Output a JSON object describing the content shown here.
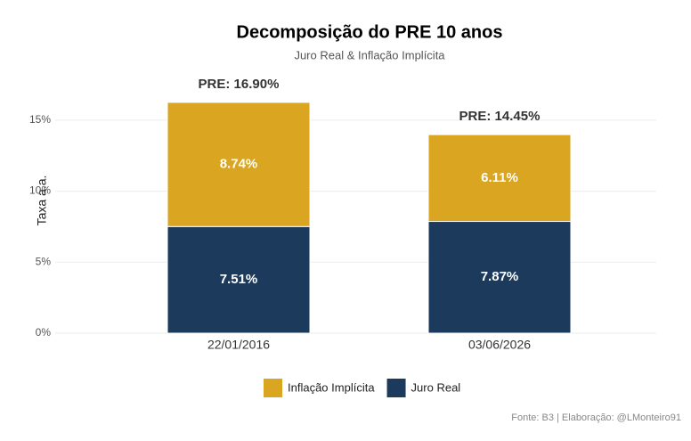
{
  "chart_data": {
    "type": "stacked_bar",
    "title": "Decomposição do PRE 10 anos",
    "subtitle": "Juro Real & Inflação Implícita",
    "y_label": "Taxa a.a.",
    "caption": "Fonte: B3 | Elaboração: @LMonteiro91",
    "categories": [
      "22/01/2016",
      "03/06/2026"
    ],
    "series": [
      {
        "name": "Inflação Implícita",
        "color": "#DAA520",
        "values": [
          8.74,
          6.11
        ],
        "value_labels": [
          "8.74%",
          "6.11%"
        ]
      },
      {
        "name": "Juro Real",
        "color": "#1B3A5C",
        "values": [
          7.51,
          7.87
        ],
        "value_labels": [
          "7.51%",
          "7.87%"
        ]
      }
    ],
    "total_labels": [
      "PRE: 16.90%",
      "PRE: 14.45%"
    ],
    "ylim": [
      0,
      17.5
    ],
    "yticks": [
      {
        "value": 0,
        "label": "0%"
      },
      {
        "value": 5,
        "label": "5%"
      },
      {
        "value": 10,
        "label": "10%"
      },
      {
        "value": 15,
        "label": "15%"
      }
    ],
    "grid": true,
    "legend": "bottom"
  }
}
